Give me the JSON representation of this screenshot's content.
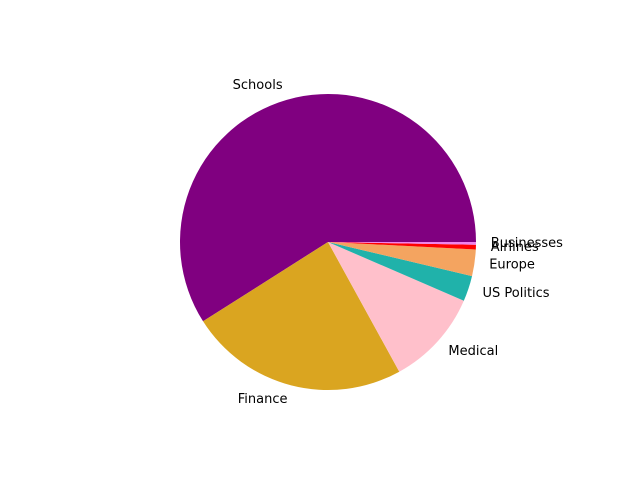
{
  "chart_data": {
    "type": "pie",
    "categories": [
      "Schools",
      "Finance",
      "Medical",
      "US Politics",
      "Europe",
      "Airlines",
      "Businesses"
    ],
    "values": [
      59.0,
      24.0,
      10.5,
      2.8,
      2.9,
      0.5,
      0.3
    ],
    "colors": [
      "#800080",
      "#daa520",
      "#ffc0cb",
      "#20b2aa",
      "#f4a460",
      "#ff0000",
      "#ee82ee"
    ],
    "start_angle_deg": 0,
    "direction": "counterclockwise",
    "title": "",
    "legend": "none"
  }
}
